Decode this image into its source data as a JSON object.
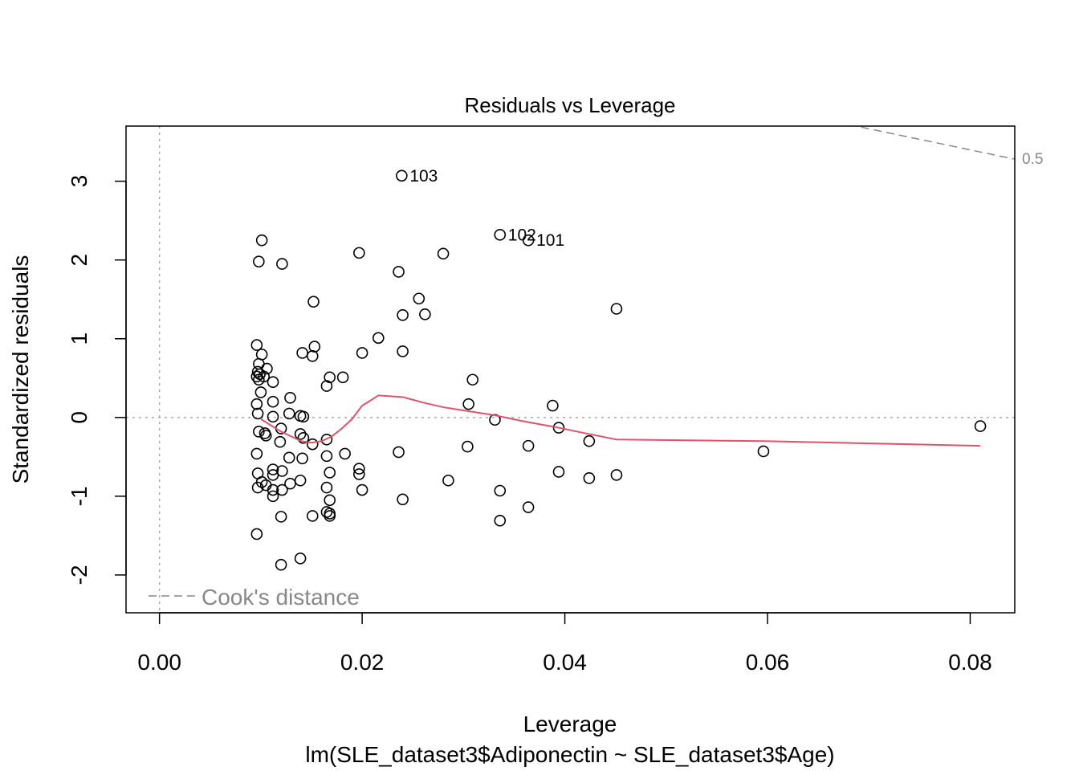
{
  "chart_data": {
    "type": "scatter",
    "title": "Residuals vs Leverage",
    "xlabel": "Leverage",
    "subtitle": "lm(SLE_dataset3$Adiponectin ~ SLE_dataset3$Age)",
    "ylabel": "Standardized residuals",
    "xlim": [
      -0.0033,
      0.0844
    ],
    "ylim": [
      -2.48,
      3.7
    ],
    "x_ticks": [
      "0.00",
      "0.02",
      "0.04",
      "0.06",
      "0.08"
    ],
    "y_ticks": [
      "-2",
      "-1",
      "0",
      "1",
      "2",
      "3"
    ],
    "legend": {
      "label": "Cook's distance",
      "position": "bottom-left"
    },
    "cooks_contour_label": "0.5",
    "colors": {
      "points": "#000000",
      "smoother": "#DF536B",
      "reference": "#aaaaaa",
      "cooks": "#888888"
    },
    "points": [
      {
        "x": 0.0239,
        "y": 3.07,
        "label": "103"
      },
      {
        "x": 0.0336,
        "y": 2.32,
        "label": "102"
      },
      {
        "x": 0.0364,
        "y": 2.25,
        "label": "101"
      },
      {
        "x": 0.0101,
        "y": 2.25
      },
      {
        "x": 0.0098,
        "y": 1.98
      },
      {
        "x": 0.0121,
        "y": 1.95
      },
      {
        "x": 0.0197,
        "y": 2.09
      },
      {
        "x": 0.028,
        "y": 2.08
      },
      {
        "x": 0.0236,
        "y": 1.85
      },
      {
        "x": 0.0256,
        "y": 1.51
      },
      {
        "x": 0.0152,
        "y": 1.47
      },
      {
        "x": 0.024,
        "y": 1.3
      },
      {
        "x": 0.0262,
        "y": 1.31
      },
      {
        "x": 0.0451,
        "y": 1.38
      },
      {
        "x": 0.0216,
        "y": 1.01
      },
      {
        "x": 0.0096,
        "y": 0.92
      },
      {
        "x": 0.0101,
        "y": 0.8
      },
      {
        "x": 0.0141,
        "y": 0.82
      },
      {
        "x": 0.0153,
        "y": 0.9
      },
      {
        "x": 0.0151,
        "y": 0.78
      },
      {
        "x": 0.02,
        "y": 0.82
      },
      {
        "x": 0.024,
        "y": 0.84
      },
      {
        "x": 0.0098,
        "y": 0.68
      },
      {
        "x": 0.0106,
        "y": 0.62
      },
      {
        "x": 0.0097,
        "y": 0.58
      },
      {
        "x": 0.0099,
        "y": 0.55
      },
      {
        "x": 0.0096,
        "y": 0.52
      },
      {
        "x": 0.0098,
        "y": 0.48
      },
      {
        "x": 0.0103,
        "y": 0.52
      },
      {
        "x": 0.0112,
        "y": 0.45
      },
      {
        "x": 0.0168,
        "y": 0.51
      },
      {
        "x": 0.0181,
        "y": 0.51
      },
      {
        "x": 0.0165,
        "y": 0.4
      },
      {
        "x": 0.0309,
        "y": 0.48
      },
      {
        "x": 0.01,
        "y": 0.32
      },
      {
        "x": 0.0096,
        "y": 0.17
      },
      {
        "x": 0.0112,
        "y": 0.2
      },
      {
        "x": 0.0129,
        "y": 0.25
      },
      {
        "x": 0.0305,
        "y": 0.17
      },
      {
        "x": 0.0388,
        "y": 0.15
      },
      {
        "x": 0.0097,
        "y": 0.05
      },
      {
        "x": 0.0112,
        "y": 0.01
      },
      {
        "x": 0.0128,
        "y": 0.05
      },
      {
        "x": 0.0139,
        "y": 0.02
      },
      {
        "x": 0.0142,
        "y": 0.01
      },
      {
        "x": 0.0331,
        "y": -0.03
      },
      {
        "x": 0.0394,
        "y": -0.13
      },
      {
        "x": 0.081,
        "y": -0.11
      },
      {
        "x": 0.0098,
        "y": -0.18
      },
      {
        "x": 0.0104,
        "y": -0.2
      },
      {
        "x": 0.0105,
        "y": -0.23
      },
      {
        "x": 0.012,
        "y": -0.14
      },
      {
        "x": 0.0139,
        "y": -0.21
      },
      {
        "x": 0.0142,
        "y": -0.26
      },
      {
        "x": 0.0119,
        "y": -0.31
      },
      {
        "x": 0.0151,
        "y": -0.34
      },
      {
        "x": 0.0165,
        "y": -0.28
      },
      {
        "x": 0.0304,
        "y": -0.37
      },
      {
        "x": 0.0364,
        "y": -0.36
      },
      {
        "x": 0.0424,
        "y": -0.3
      },
      {
        "x": 0.0096,
        "y": -0.46
      },
      {
        "x": 0.0128,
        "y": -0.51
      },
      {
        "x": 0.0141,
        "y": -0.52
      },
      {
        "x": 0.0165,
        "y": -0.49
      },
      {
        "x": 0.0183,
        "y": -0.46
      },
      {
        "x": 0.0236,
        "y": -0.44
      },
      {
        "x": 0.0596,
        "y": -0.43
      },
      {
        "x": 0.0097,
        "y": -0.71
      },
      {
        "x": 0.0112,
        "y": -0.66
      },
      {
        "x": 0.0112,
        "y": -0.73
      },
      {
        "x": 0.0121,
        "y": -0.68
      },
      {
        "x": 0.0168,
        "y": -0.7
      },
      {
        "x": 0.0197,
        "y": -0.65
      },
      {
        "x": 0.0197,
        "y": -0.72
      },
      {
        "x": 0.0394,
        "y": -0.69
      },
      {
        "x": 0.0451,
        "y": -0.73
      },
      {
        "x": 0.0424,
        "y": -0.77
      },
      {
        "x": 0.0285,
        "y": -0.8
      },
      {
        "x": 0.0101,
        "y": -0.82
      },
      {
        "x": 0.0105,
        "y": -0.86
      },
      {
        "x": 0.0097,
        "y": -0.89
      },
      {
        "x": 0.0112,
        "y": -0.92
      },
      {
        "x": 0.0121,
        "y": -0.92
      },
      {
        "x": 0.0129,
        "y": -0.84
      },
      {
        "x": 0.0139,
        "y": -0.8
      },
      {
        "x": 0.0165,
        "y": -0.89
      },
      {
        "x": 0.02,
        "y": -0.92
      },
      {
        "x": 0.0336,
        "y": -0.93
      },
      {
        "x": 0.0112,
        "y": -1.0
      },
      {
        "x": 0.0168,
        "y": -1.05
      },
      {
        "x": 0.024,
        "y": -1.04
      },
      {
        "x": 0.0364,
        "y": -1.14
      },
      {
        "x": 0.0165,
        "y": -1.2
      },
      {
        "x": 0.0168,
        "y": -1.22
      },
      {
        "x": 0.0168,
        "y": -1.25
      },
      {
        "x": 0.0151,
        "y": -1.25
      },
      {
        "x": 0.012,
        "y": -1.26
      },
      {
        "x": 0.0336,
        "y": -1.31
      },
      {
        "x": 0.0096,
        "y": -1.48
      },
      {
        "x": 0.0139,
        "y": -1.79
      },
      {
        "x": 0.012,
        "y": -1.87
      }
    ],
    "smoother": {
      "x": [
        0.01,
        0.011,
        0.012,
        0.013,
        0.014,
        0.015,
        0.016,
        0.017,
        0.018,
        0.019,
        0.02,
        0.0216,
        0.024,
        0.026,
        0.028,
        0.03,
        0.033,
        0.036,
        0.039,
        0.042,
        0.0451,
        0.0596,
        0.081
      ],
      "y": [
        -0.02,
        -0.1,
        -0.18,
        -0.24,
        -0.3,
        -0.32,
        -0.3,
        -0.24,
        -0.14,
        -0.02,
        0.15,
        0.28,
        0.26,
        0.19,
        0.13,
        0.09,
        0.03,
        -0.05,
        -0.12,
        -0.2,
        -0.28,
        -0.3,
        -0.36
      ]
    },
    "cooks_contour": {
      "x": [
        0.068,
        0.0844
      ],
      "y": [
        3.72,
        3.28
      ]
    }
  }
}
